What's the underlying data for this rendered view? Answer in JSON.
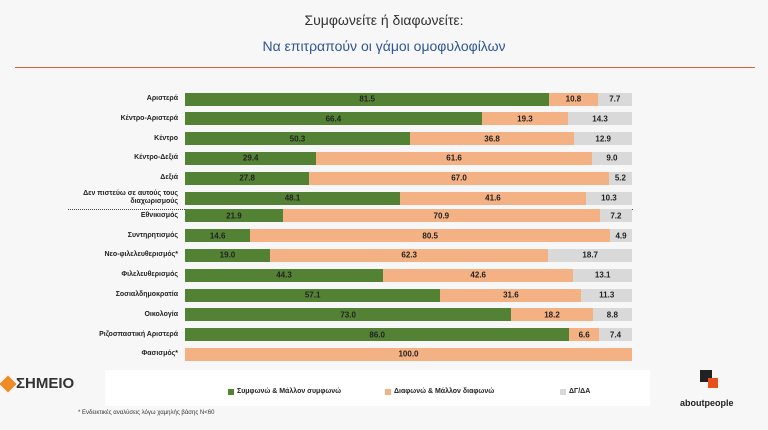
{
  "chart_data": {
    "type": "stacked-bar-horizontal",
    "title": "Συμφωνείτε ή διαφωνείτε:",
    "subtitle": "Να επιτραπούν οι γάμοι ομοφυλοφίλων",
    "categories": [
      "Αριστερά",
      "Κέντρο-Αριστερά",
      "Κέντρο",
      "Κέντρο-Δεξιά",
      "Δεξιά",
      "Δεν πιστεύω σε αυτούς τους\nδιαχωρισμούς",
      "Εθνικισμός",
      "Συντηρητισμός",
      "Νεο-φιλελευθερισμός*",
      "Φιλελευθερισμός",
      "Σοσιαλδημοκρατία",
      "Οικολογία",
      "Ριζοσπαστική Αριστερά",
      "Φασισμός*"
    ],
    "xlim": [
      0,
      100
    ],
    "series": [
      {
        "name": "Συμφωνώ & Μάλλον συμφωνώ",
        "color": "#548235",
        "values": [
          81.5,
          66.4,
          50.3,
          29.4,
          27.8,
          48.1,
          21.9,
          14.6,
          19.0,
          44.3,
          57.1,
          73.0,
          86.0,
          null
        ],
        "value_labels": [
          "81.5",
          "66.4",
          "50.3",
          "29.4",
          "27.8",
          "48.1",
          "21.9",
          "14.6",
          "19.0",
          "44.3",
          "57.1",
          "73.0",
          "86.0",
          null
        ]
      },
      {
        "name": "Διαφωνώ & Μάλλον διαφωνώ",
        "color": "#f4b183",
        "values": [
          10.8,
          19.3,
          36.8,
          61.6,
          67.0,
          41.6,
          70.9,
          80.5,
          62.3,
          42.6,
          31.6,
          18.2,
          6.6,
          100.0
        ],
        "value_labels": [
          "10.8",
          "19.3",
          "36.8",
          "61.6",
          "67.0",
          "41.6",
          "70.9",
          "80.5",
          "62.3",
          "42.6",
          "31.6",
          "18.2",
          "6.6",
          "100.0"
        ]
      },
      {
        "name": "ΔΓ/ΔΑ",
        "color": "#d9d9d9",
        "values": [
          7.7,
          14.3,
          12.9,
          9.0,
          5.2,
          10.3,
          7.2,
          4.9,
          18.7,
          13.1,
          11.3,
          8.8,
          7.4,
          null
        ],
        "value_labels": [
          "7.7",
          "14.3",
          "12.9",
          "9.0",
          "5.2",
          "10.3",
          "7.2",
          "4.9",
          "18.7",
          "13.1",
          "11.3",
          "8.8",
          "7.4",
          null
        ]
      }
    ],
    "footnote": "* Ενδεικτικές αναλύσεις λόγω χαμηλής βάσης Ν<60",
    "logo_left": "ΣΗΜΕΙΟ",
    "logo_right": "aboutpeople"
  }
}
